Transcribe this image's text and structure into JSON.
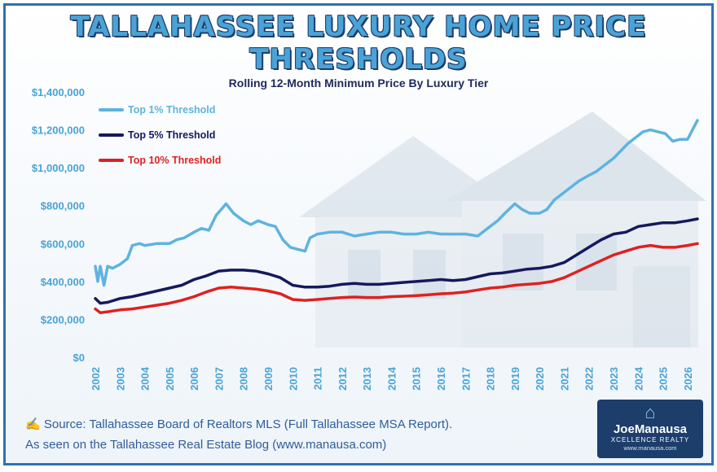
{
  "title": "TALLAHASSEE LUXURY HOME PRICE THRESHOLDS",
  "source_line1": "Source: Tallahassee Board of Realtors MLS (Full Tallahassee MSA Report).",
  "source_line2": "As seen on the Tallahassee Real Estate Blog (www.manausa.com)",
  "logo": {
    "name": "JoeManausa",
    "sub": "XCELLENCE REALTY",
    "url": "www.manausa.com"
  },
  "colors": {
    "top1": "#5eb3e0",
    "top5": "#15195c",
    "top10": "#e02020",
    "axis_text": "#4aa3d6",
    "title": "#4aa3d6"
  },
  "chart_data": {
    "type": "line",
    "title": "Rolling 12-Month Minimum Price By Luxury Tier",
    "xlabel": "",
    "ylabel": "",
    "ylim": [
      0,
      1400000
    ],
    "xlim": [
      2002,
      2026.5
    ],
    "yticks": [
      "$0",
      "$200,000",
      "$400,000",
      "$600,000",
      "$800,000",
      "$1,000,000",
      "$1,200,000",
      "$1,400,000"
    ],
    "xticks": [
      "2002",
      "2003",
      "2004",
      "2005",
      "2006",
      "2007",
      "2008",
      "2009",
      "2010",
      "2011",
      "2012",
      "2013",
      "2014",
      "2015",
      "2016",
      "2017",
      "2018",
      "2019",
      "2020",
      "2021",
      "2022",
      "2023",
      "2024",
      "2025",
      "2026"
    ],
    "grid": false,
    "legend_position": "top-left",
    "series": [
      {
        "name": "Top 1% Threshold",
        "x": [
          2002.0,
          2002.1,
          2002.2,
          2002.35,
          2002.5,
          2002.7,
          2003.0,
          2003.3,
          2003.5,
          2003.8,
          2004.0,
          2004.5,
          2005.0,
          2005.3,
          2005.6,
          2006.0,
          2006.3,
          2006.6,
          2006.9,
          2007.1,
          2007.3,
          2007.6,
          2008.0,
          2008.3,
          2008.6,
          2009.0,
          2009.3,
          2009.6,
          2009.9,
          2010.2,
          2010.5,
          2010.7,
          2011.0,
          2011.5,
          2012.0,
          2012.5,
          2013.0,
          2013.5,
          2014.0,
          2014.5,
          2015.0,
          2015.5,
          2016.0,
          2016.5,
          2017.0,
          2017.5,
          2018.0,
          2018.3,
          2018.6,
          2019.0,
          2019.3,
          2019.6,
          2020.0,
          2020.3,
          2020.6,
          2021.0,
          2021.3,
          2021.6,
          2022.0,
          2022.3,
          2022.6,
          2023.0,
          2023.3,
          2023.6,
          2023.9,
          2024.2,
          2024.5,
          2024.8,
          2025.1,
          2025.4,
          2025.7,
          2026.0,
          2026.2,
          2026.4
        ],
        "values": [
          480000,
          400000,
          480000,
          380000,
          480000,
          470000,
          490000,
          520000,
          590000,
          600000,
          590000,
          600000,
          600000,
          620000,
          630000,
          660000,
          680000,
          670000,
          750000,
          780000,
          810000,
          760000,
          720000,
          700000,
          720000,
          700000,
          690000,
          620000,
          580000,
          570000,
          560000,
          630000,
          650000,
          660000,
          660000,
          640000,
          650000,
          660000,
          660000,
          650000,
          650000,
          660000,
          650000,
          650000,
          650000,
          640000,
          690000,
          720000,
          760000,
          810000,
          780000,
          760000,
          760000,
          780000,
          830000,
          870000,
          900000,
          930000,
          960000,
          980000,
          1010000,
          1050000,
          1090000,
          1130000,
          1160000,
          1190000,
          1200000,
          1190000,
          1180000,
          1140000,
          1150000,
          1150000,
          1200000,
          1250000
        ]
      },
      {
        "name": "Top 5% Threshold",
        "x": [
          2002.0,
          2002.2,
          2002.5,
          2003.0,
          2003.5,
          2004.0,
          2004.5,
          2005.0,
          2005.5,
          2006.0,
          2006.5,
          2007.0,
          2007.5,
          2008.0,
          2008.5,
          2009.0,
          2009.5,
          2010.0,
          2010.5,
          2011.0,
          2011.5,
          2012.0,
          2012.5,
          2013.0,
          2013.5,
          2014.0,
          2014.5,
          2015.0,
          2015.5,
          2016.0,
          2016.5,
          2017.0,
          2017.5,
          2018.0,
          2018.5,
          2019.0,
          2019.5,
          2020.0,
          2020.5,
          2021.0,
          2021.5,
          2022.0,
          2022.5,
          2023.0,
          2023.5,
          2024.0,
          2024.5,
          2025.0,
          2025.5,
          2026.0,
          2026.4
        ],
        "values": [
          310000,
          285000,
          290000,
          310000,
          320000,
          335000,
          350000,
          365000,
          380000,
          410000,
          430000,
          455000,
          460000,
          460000,
          455000,
          440000,
          420000,
          380000,
          370000,
          370000,
          375000,
          385000,
          390000,
          385000,
          385000,
          390000,
          395000,
          400000,
          405000,
          410000,
          405000,
          410000,
          425000,
          440000,
          445000,
          455000,
          465000,
          470000,
          480000,
          500000,
          540000,
          580000,
          620000,
          650000,
          660000,
          690000,
          700000,
          710000,
          710000,
          720000,
          730000
        ]
      },
      {
        "name": "Top 10% Threshold",
        "x": [
          2002.0,
          2002.2,
          2002.5,
          2003.0,
          2003.5,
          2004.0,
          2004.5,
          2005.0,
          2005.5,
          2006.0,
          2006.5,
          2007.0,
          2007.5,
          2008.0,
          2008.5,
          2009.0,
          2009.5,
          2010.0,
          2010.5,
          2011.0,
          2011.5,
          2012.0,
          2012.5,
          2013.0,
          2013.5,
          2014.0,
          2014.5,
          2015.0,
          2015.5,
          2016.0,
          2016.5,
          2017.0,
          2017.5,
          2018.0,
          2018.5,
          2019.0,
          2019.5,
          2020.0,
          2020.5,
          2021.0,
          2021.5,
          2022.0,
          2022.5,
          2023.0,
          2023.5,
          2024.0,
          2024.5,
          2025.0,
          2025.5,
          2026.0,
          2026.4
        ],
        "values": [
          255000,
          235000,
          240000,
          250000,
          255000,
          265000,
          275000,
          285000,
          300000,
          320000,
          345000,
          365000,
          370000,
          365000,
          360000,
          350000,
          335000,
          305000,
          300000,
          305000,
          310000,
          315000,
          318000,
          315000,
          315000,
          320000,
          322000,
          325000,
          330000,
          335000,
          338000,
          345000,
          355000,
          365000,
          370000,
          380000,
          385000,
          390000,
          400000,
          420000,
          450000,
          480000,
          510000,
          540000,
          560000,
          580000,
          590000,
          580000,
          580000,
          590000,
          600000
        ]
      }
    ]
  }
}
